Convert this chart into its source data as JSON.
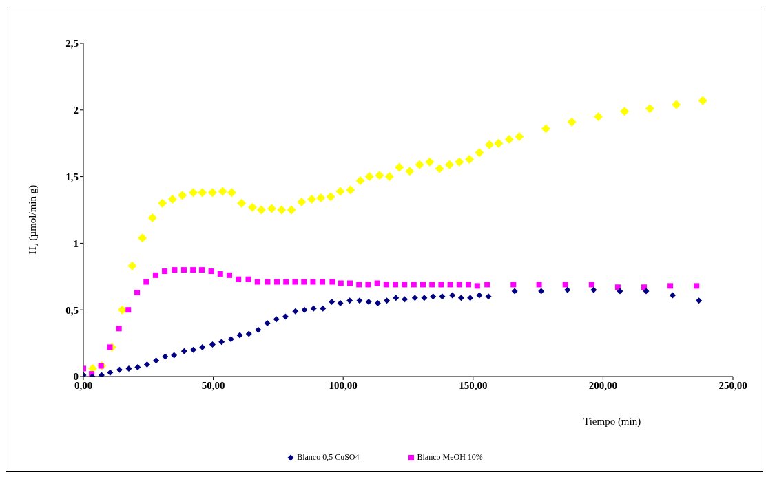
{
  "chart_data": {
    "type": "scatter",
    "xlabel": "Tiempo (min)",
    "ylabel": "H₂ (µmol/min g)",
    "xlim": [
      0,
      250
    ],
    "xticks": [
      {
        "value": 0,
        "label": "0,00"
      },
      {
        "value": 50,
        "label": "50,00"
      },
      {
        "value": 100,
        "label": "100,00"
      },
      {
        "value": 150,
        "label": "150,00"
      },
      {
        "value": 200,
        "label": "200,00"
      },
      {
        "value": 250,
        "label": "250,00"
      }
    ],
    "ylim": [
      0,
      2.5
    ],
    "yticks": [
      0,
      {
        "value": 0.5,
        "label": "0,5"
      },
      1,
      {
        "value": 1.5,
        "label": "1,5"
      },
      2,
      {
        "value": 2.5,
        "label": "2,5"
      }
    ],
    "grid": false,
    "legend": "bottom",
    "series": [
      {
        "color": "#ffff00",
        "marker": "diamond",
        "x": [
          3.6,
          7.1,
          11.0,
          15.0,
          18.8,
          22.7,
          26.6,
          30.4,
          34.3,
          38.1,
          42.3,
          45.8,
          49.7,
          53.6,
          57.1,
          60.9,
          65.1,
          68.5,
          72.5,
          76.3,
          80.1,
          84.0,
          87.9,
          91.4,
          95.2,
          98.9,
          102.8,
          106.6,
          110.1,
          114.0,
          117.8,
          121.6,
          125.6,
          129.4,
          133.3,
          137.1,
          140.9,
          144.7,
          148.6,
          152.4,
          156.3,
          159.8,
          163.9,
          167.8,
          178.0,
          188.0,
          198.2,
          208.3,
          218.0,
          228.2,
          238.4
        ],
        "values": [
          0.06,
          0.08,
          0.22,
          0.5,
          0.83,
          1.04,
          1.19,
          1.3,
          1.33,
          1.36,
          1.38,
          1.38,
          1.38,
          1.39,
          1.38,
          1.3,
          1.27,
          1.25,
          1.26,
          1.25,
          1.25,
          1.31,
          1.33,
          1.34,
          1.35,
          1.39,
          1.4,
          1.47,
          1.5,
          1.51,
          1.5,
          1.57,
          1.54,
          1.59,
          1.61,
          1.56,
          1.59,
          1.61,
          1.63,
          1.68,
          1.74,
          1.75,
          1.78,
          1.8,
          1.86,
          1.91,
          1.95,
          1.99,
          2.01,
          2.04,
          2.07
        ]
      },
      {
        "name": "Blanco 0,5 CuSO4",
        "color": "#000080",
        "marker": "diamond",
        "x": [
          0.0,
          3.4,
          7.0,
          10.3,
          13.9,
          17.5,
          20.9,
          24.5,
          28.0,
          31.5,
          34.9,
          38.8,
          42.3,
          45.8,
          49.7,
          53.2,
          56.8,
          60.2,
          63.7,
          67.3,
          70.8,
          74.3,
          77.8,
          81.6,
          85.1,
          88.6,
          92.2,
          95.6,
          98.9,
          102.5,
          106.3,
          109.8,
          113.3,
          116.8,
          120.3,
          123.7,
          127.6,
          131.2,
          134.6,
          138.1,
          142.0,
          145.4,
          148.9,
          152.4,
          155.9,
          166.0,
          176.2,
          186.3,
          196.4,
          206.5,
          216.6,
          226.8,
          236.9
        ],
        "values": [
          0.01,
          0.0,
          0.01,
          0.03,
          0.05,
          0.06,
          0.07,
          0.09,
          0.12,
          0.15,
          0.16,
          0.19,
          0.2,
          0.22,
          0.24,
          0.26,
          0.28,
          0.31,
          0.32,
          0.35,
          0.4,
          0.43,
          0.45,
          0.49,
          0.5,
          0.51,
          0.51,
          0.56,
          0.55,
          0.57,
          0.57,
          0.56,
          0.55,
          0.57,
          0.59,
          0.58,
          0.59,
          0.59,
          0.6,
          0.6,
          0.61,
          0.59,
          0.59,
          0.61,
          0.6,
          0.64,
          0.64,
          0.65,
          0.65,
          0.64,
          0.64,
          0.61,
          0.57
        ]
      },
      {
        "name": "Blanco MeOH 10%",
        "color": "#ff00ff",
        "marker": "square",
        "x": [
          0.0,
          3.2,
          6.8,
          10.2,
          13.7,
          17.3,
          20.7,
          24.2,
          27.8,
          31.3,
          35.1,
          38.7,
          42.2,
          45.6,
          49.2,
          52.7,
          56.2,
          59.7,
          63.5,
          67.0,
          70.9,
          74.5,
          78.0,
          81.5,
          84.9,
          88.4,
          92.0,
          95.8,
          99.1,
          102.6,
          106.1,
          109.6,
          113.1,
          116.6,
          120.1,
          123.6,
          127.2,
          130.7,
          134.2,
          137.7,
          141.2,
          144.7,
          148.2,
          151.6,
          155.4,
          165.5,
          175.4,
          185.5,
          195.6,
          205.7,
          215.8,
          225.9,
          236.0
        ],
        "values": [
          0.06,
          0.02,
          0.08,
          0.22,
          0.36,
          0.5,
          0.63,
          0.71,
          0.76,
          0.79,
          0.8,
          0.8,
          0.8,
          0.8,
          0.79,
          0.77,
          0.76,
          0.73,
          0.73,
          0.71,
          0.71,
          0.71,
          0.71,
          0.71,
          0.71,
          0.71,
          0.71,
          0.71,
          0.7,
          0.7,
          0.69,
          0.69,
          0.7,
          0.69,
          0.69,
          0.69,
          0.69,
          0.69,
          0.69,
          0.69,
          0.69,
          0.69,
          0.69,
          0.68,
          0.69,
          0.69,
          0.69,
          0.69,
          0.69,
          0.67,
          0.67,
          0.68,
          0.68
        ]
      }
    ]
  }
}
